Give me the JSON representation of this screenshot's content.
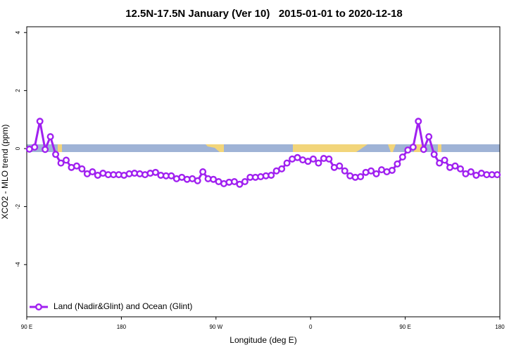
{
  "chart_data": {
    "type": "line",
    "title": "12.5N-17.5N January (Ver 10)   2015-01-01 to 2020-12-18",
    "x_label": "Longitude (deg E)",
    "y_label": "XCO2 - MLO trend (ppm)",
    "x": [
      92.5,
      97.5,
      102.5,
      107.5,
      112.5,
      117.5,
      122.5,
      127.5,
      132.5,
      137.5,
      142.5,
      147.5,
      152.5,
      157.5,
      162.5,
      167.5,
      172.5,
      177.5,
      182.5,
      187.5,
      192.5,
      197.5,
      202.5,
      207.5,
      212.5,
      217.5,
      222.5,
      227.5,
      232.5,
      237.5,
      242.5,
      247.5,
      252.5,
      257.5,
      262.5,
      267.5,
      272.5,
      277.5,
      282.5,
      287.5,
      292.5,
      297.5,
      302.5,
      307.5,
      312.5,
      317.5,
      322.5,
      327.5,
      332.5,
      337.5,
      342.5,
      347.5,
      352.5,
      357.5,
      362.5,
      367.5,
      372.5,
      377.5,
      382.5,
      387.5,
      392.5,
      397.5,
      402.5,
      407.5,
      412.5,
      417.5,
      422.5,
      427.5,
      432.5,
      437.5,
      442.5,
      447.5,
      452.5,
      457.5,
      462.5,
      467.5,
      472.5,
      477.5,
      482.5,
      487.5,
      492.5,
      497.5,
      502.5,
      507.5,
      512.5,
      517.5,
      522.5,
      527.5,
      532.5,
      537.5
    ],
    "series": [
      {
        "name": "Land (Nadir&Glint) and Ocean (Glint)",
        "color": "#a020f0",
        "values": [
          -0.02,
          0.05,
          0.94,
          -0.03,
          0.41,
          -0.2,
          -0.5,
          -0.4,
          -0.65,
          -0.6,
          -0.7,
          -0.87,
          -0.8,
          -0.92,
          -0.85,
          -0.9,
          -0.9,
          -0.9,
          -0.92,
          -0.87,
          -0.85,
          -0.87,
          -0.9,
          -0.85,
          -0.82,
          -0.92,
          -0.94,
          -0.94,
          -1.04,
          -0.99,
          -1.06,
          -1.04,
          -1.11,
          -0.8,
          -1.04,
          -1.06,
          -1.14,
          -1.21,
          -1.16,
          -1.14,
          -1.23,
          -1.14,
          -0.99,
          -0.99,
          -0.97,
          -0.94,
          -0.92,
          -0.77,
          -0.7,
          -0.5,
          -0.36,
          -0.31,
          -0.39,
          -0.44,
          -0.36,
          -0.5,
          -0.34,
          -0.36,
          -0.65,
          -0.6,
          -0.77,
          -0.94,
          -0.99,
          -0.97,
          -0.82,
          -0.77,
          -0.87,
          -0.73,
          -0.8,
          -0.75,
          -0.53,
          -0.29,
          -0.05,
          0.05,
          0.94,
          -0.03,
          0.41,
          -0.2,
          -0.5,
          -0.4,
          -0.65,
          -0.6,
          -0.7,
          -0.87,
          -0.8,
          -0.92,
          -0.85,
          -0.9,
          -0.9,
          -0.9
        ]
      }
    ],
    "xlim": [
      90,
      540
    ],
    "xticks": [
      {
        "value": 90,
        "label": "90 E"
      },
      {
        "value": 180,
        "label": "180"
      },
      {
        "value": 270,
        "label": "90 W"
      },
      {
        "value": 360,
        "label": "0"
      },
      {
        "value": 450,
        "label": "90 E"
      },
      {
        "value": 540,
        "label": "180"
      }
    ],
    "ylim": [
      -5.8,
      4.2
    ],
    "yticks": [
      -4,
      -2,
      0,
      2,
      4
    ],
    "legend": "bottom-left"
  }
}
